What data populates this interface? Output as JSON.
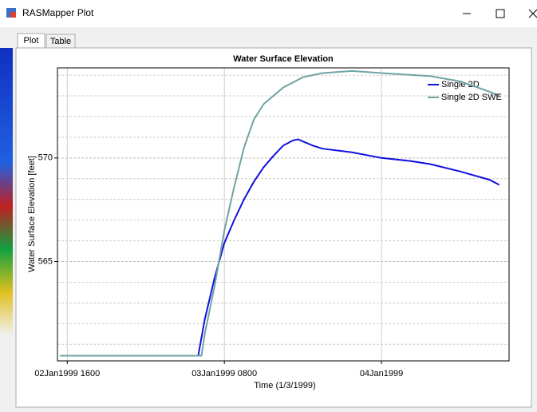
{
  "window": {
    "title": "RASMapper Plot",
    "tabs": [
      "Plot",
      "Table"
    ]
  },
  "chart_data": {
    "type": "line",
    "title": "Water Surface Elevation",
    "x_label": "Time (1/3/1999)",
    "y_label": "Water Surface Elevation [feet]",
    "xlim": [
      "1999-01-02T15:00",
      "1999-01-04T13:00"
    ],
    "xticks": [
      {
        "value": "1999-01-02T16:00",
        "label": "02Jan1999 1600"
      },
      {
        "value": "1999-01-03T08:00",
        "label": "03Jan1999 0800"
      },
      {
        "value": "1999-01-04T00:00",
        "label": "04Jan1999"
      }
    ],
    "ylim": [
      560.2,
      574.35
    ],
    "yticks": [
      565,
      570
    ],
    "y_minor_ticks": [
      561,
      562,
      563,
      564,
      566,
      567,
      568,
      569,
      571,
      572,
      573,
      574
    ],
    "grid": true,
    "legend": "upper right",
    "series": [
      {
        "name": "Single 2D",
        "color": "#1010e0",
        "x": [
          "1999-01-02T15:15",
          "1999-01-03T05:20",
          "1999-01-03T06:00",
          "1999-01-03T07:00",
          "1999-01-03T08:00",
          "1999-01-03T09:00",
          "1999-01-03T10:00",
          "1999-01-03T11:00",
          "1999-01-03T12:00",
          "1999-01-03T13:00",
          "1999-01-03T14:00",
          "1999-01-03T15:00",
          "1999-01-03T15:30",
          "1999-01-03T16:00",
          "1999-01-03T17:00",
          "1999-01-03T18:00",
          "1999-01-03T21:00",
          "1999-01-04T00:00",
          "1999-01-04T03:00",
          "1999-01-04T05:00",
          "1999-01-04T08:00",
          "1999-01-04T11:00",
          "1999-01-04T12:00"
        ],
        "values": [
          560.45,
          560.45,
          562.2,
          564.2,
          565.9,
          567.0,
          568.0,
          568.85,
          569.55,
          570.1,
          570.6,
          570.85,
          570.9,
          570.8,
          570.6,
          570.45,
          570.27,
          570.0,
          569.85,
          569.7,
          569.35,
          568.95,
          568.7
        ]
      },
      {
        "name": "Single 2D SWE",
        "color": "#6fa3a3",
        "x": [
          "1999-01-02T15:15",
          "1999-01-03T05:40",
          "1999-01-03T06:00",
          "1999-01-03T07:00",
          "1999-01-03T08:00",
          "1999-01-03T09:00",
          "1999-01-03T10:00",
          "1999-01-03T11:00",
          "1999-01-03T12:00",
          "1999-01-03T14:00",
          "1999-01-03T16:00",
          "1999-01-03T18:00",
          "1999-01-03T21:00",
          "1999-01-04T00:00",
          "1999-01-04T05:00",
          "1999-01-04T08:00",
          "1999-01-04T11:00",
          "1999-01-04T12:00"
        ],
        "values": [
          560.45,
          560.45,
          561.5,
          563.8,
          566.5,
          568.6,
          570.5,
          571.85,
          572.6,
          573.4,
          573.9,
          574.1,
          574.2,
          574.1,
          573.95,
          573.7,
          573.2,
          573.0
        ]
      }
    ]
  }
}
